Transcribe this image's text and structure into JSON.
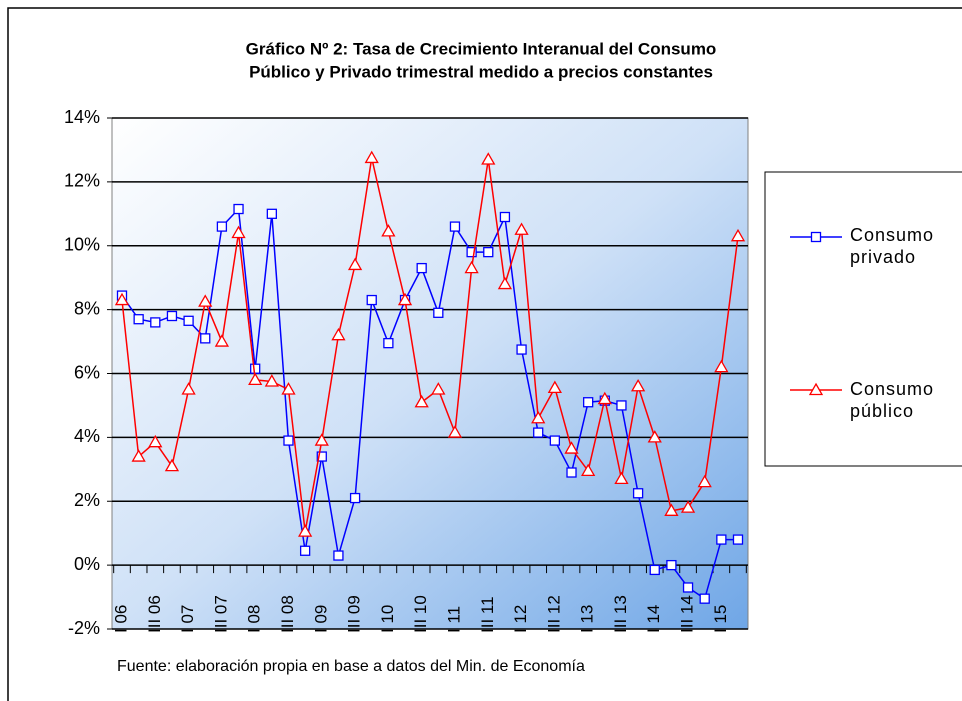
{
  "chart_data": {
    "type": "line",
    "title": [
      "Gráfico Nº 2: Tasa de Crecimiento Interanual del Consumo",
      "Público y Privado trimestral medido a precios constantes"
    ],
    "source": "Fuente: elaboración propia en base a datos del Min. de Economía",
    "categories": [
      "I 06",
      null,
      "III 06",
      null,
      "I 07",
      null,
      "III 07",
      null,
      "I 08",
      null,
      "III 08",
      null,
      "I 09",
      null,
      "III 09",
      null,
      "I 10",
      null,
      "III 10",
      null,
      "I 11",
      null,
      "III 11",
      null,
      "I 12",
      null,
      "III 12",
      null,
      "I 13",
      null,
      "III 13",
      null,
      "I 14",
      null,
      "III 14",
      null,
      "I 15",
      null
    ],
    "series": [
      {
        "name": "Consumo privado",
        "color": "#0000ff",
        "marker": "square",
        "values": [
          8.44,
          7.7,
          7.6,
          7.8,
          7.65,
          7.1,
          10.6,
          11.15,
          6.15,
          11.0,
          3.9,
          0.45,
          3.4,
          0.3,
          2.1,
          8.3,
          6.95,
          8.3,
          9.3,
          7.9,
          10.6,
          9.8,
          9.8,
          10.9,
          6.75,
          4.15,
          3.9,
          2.9,
          5.1,
          5.15,
          5.0,
          2.25,
          -0.15,
          0.0,
          -0.7,
          -1.05,
          0.8,
          0.8
        ]
      },
      {
        "name": "Consumo público",
        "color": "#ff0000",
        "marker": "triangle",
        "values": [
          8.3,
          3.4,
          3.85,
          3.1,
          5.5,
          8.25,
          7.0,
          10.4,
          5.8,
          5.75,
          5.5,
          1.05,
          3.9,
          7.2,
          9.4,
          12.75,
          10.45,
          8.3,
          5.1,
          5.5,
          4.15,
          9.3,
          12.7,
          8.8,
          10.5,
          4.6,
          5.55,
          3.65,
          2.95,
          5.2,
          2.7,
          5.6,
          4.0,
          1.7,
          1.8,
          2.6,
          6.2,
          10.3
        ]
      }
    ],
    "ylim": [
      -2,
      14
    ],
    "yticks": [
      {
        "value": -2,
        "label": "-2%"
      },
      {
        "value": 0,
        "label": "0%"
      },
      {
        "value": 2,
        "label": "2%"
      },
      {
        "value": 4,
        "label": "4%"
      },
      {
        "value": 6,
        "label": "6%"
      },
      {
        "value": 8,
        "label": "8%"
      },
      {
        "value": 10,
        "label": "10%"
      },
      {
        "value": 12,
        "label": "12%"
      },
      {
        "value": 14,
        "label": "14%"
      }
    ],
    "grid": true
  }
}
